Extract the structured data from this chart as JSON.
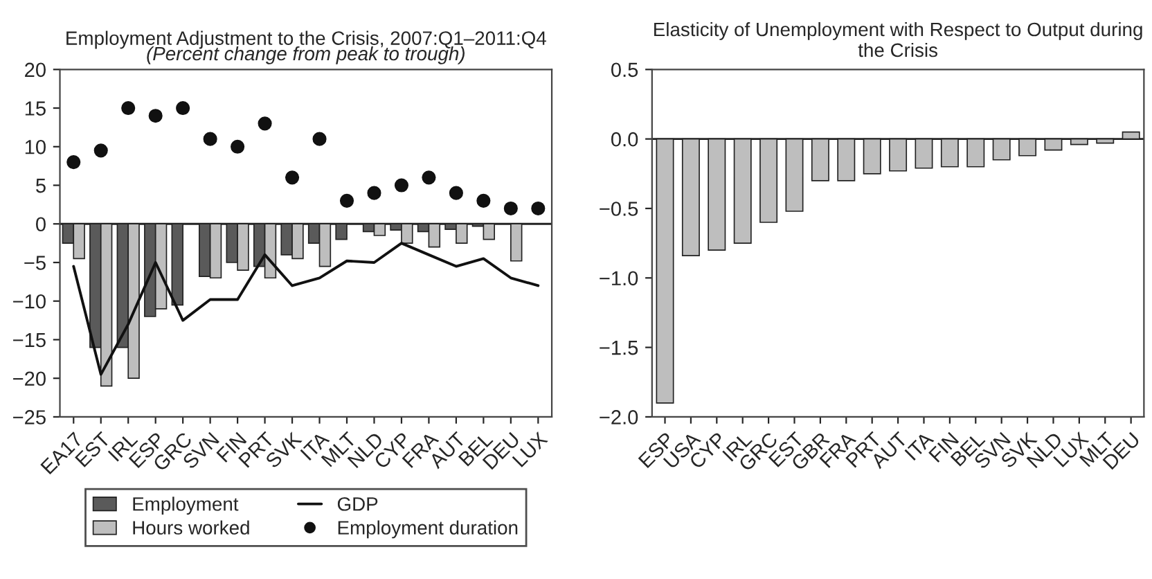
{
  "chart_data": [
    {
      "type": "bar",
      "title": "Employment Adjustment to the Crisis, 2007:Q1–2011:Q4",
      "subtitle": "(Percent change from peak to trough)",
      "categories": [
        "EA17",
        "EST",
        "IRL",
        "ESP",
        "GRC",
        "SVN",
        "FIN",
        "PRT",
        "SVK",
        "ITA",
        "MLT",
        "NLD",
        "CYP",
        "FRA",
        "AUT",
        "BEL",
        "DEU",
        "LUX"
      ],
      "series": [
        {
          "name": "Employment",
          "color": "#5a5a5a",
          "values": [
            -2.5,
            -16,
            -16,
            -12,
            -10.5,
            -6.8,
            -5,
            -5.5,
            -4,
            -2.5,
            -2,
            -1,
            -0.8,
            -1,
            -0.7,
            -0.3,
            null,
            null
          ]
        },
        {
          "name": "Hours worked",
          "color": "#bebebe",
          "values": [
            -4.5,
            -21,
            -20,
            -11,
            null,
            -7,
            -6,
            -7,
            -4.5,
            -5.5,
            null,
            -1.5,
            -2.5,
            -3,
            -2.5,
            -2,
            -4.8,
            null
          ]
        },
        {
          "name": "GDP",
          "type": "line",
          "color": "#111111",
          "values": [
            -5.5,
            -19.5,
            -13,
            -5,
            -12.5,
            -9.8,
            -9.8,
            -4,
            -8,
            -7,
            -4.8,
            -5,
            -2.5,
            -4,
            -5.5,
            -4.5,
            -7,
            -8
          ]
        },
        {
          "name": "Employment duration",
          "type": "scatter",
          "marker": "circle",
          "color": "#111111",
          "values": [
            8,
            9.5,
            15,
            14,
            15,
            11,
            10,
            13,
            6,
            11,
            3,
            4,
            5,
            6,
            4,
            3,
            2,
            2
          ]
        }
      ],
      "ylim": [
        -25,
        20
      ],
      "yticks": [
        -25,
        -20,
        -15,
        -10,
        -5,
        0,
        5,
        10,
        15,
        20
      ],
      "ref_lines": [
        {
          "axis": "y",
          "value": 0
        }
      ],
      "legend": "bottom",
      "grid": false
    },
    {
      "type": "bar",
      "title": "Elasticity of Unemployment with Respect to Output during the Crisis",
      "categories": [
        "ESP",
        "USA",
        "CYP",
        "IRL",
        "GRC",
        "EST",
        "GBR",
        "FRA",
        "PRT",
        "AUT",
        "ITA",
        "FIN",
        "BEL",
        "SVN",
        "SVK",
        "NLD",
        "LUX",
        "MLT",
        "DEU"
      ],
      "series": [
        {
          "color": "#bebebe",
          "values": [
            -1.9,
            -0.84,
            -0.8,
            -0.75,
            -0.6,
            -0.52,
            -0.3,
            -0.3,
            -0.25,
            -0.23,
            -0.21,
            -0.2,
            -0.2,
            -0.15,
            -0.12,
            -0.08,
            -0.04,
            -0.03,
            0.05
          ]
        }
      ],
      "ylim": [
        -2.0,
        0.5
      ],
      "yticks": [
        {
          "value": -2.0,
          "label": "−2.0"
        },
        {
          "value": -1.5,
          "label": "−1.5"
        },
        {
          "value": -1.0,
          "label": "−1.0"
        },
        {
          "value": -0.5,
          "label": "−0.5"
        },
        {
          "value": 0.0,
          "label": "0.0"
        },
        {
          "value": 0.5,
          "label": "0.5"
        }
      ],
      "ref_lines": [
        {
          "axis": "y",
          "value": 0
        }
      ],
      "legend": false,
      "grid": false
    }
  ]
}
